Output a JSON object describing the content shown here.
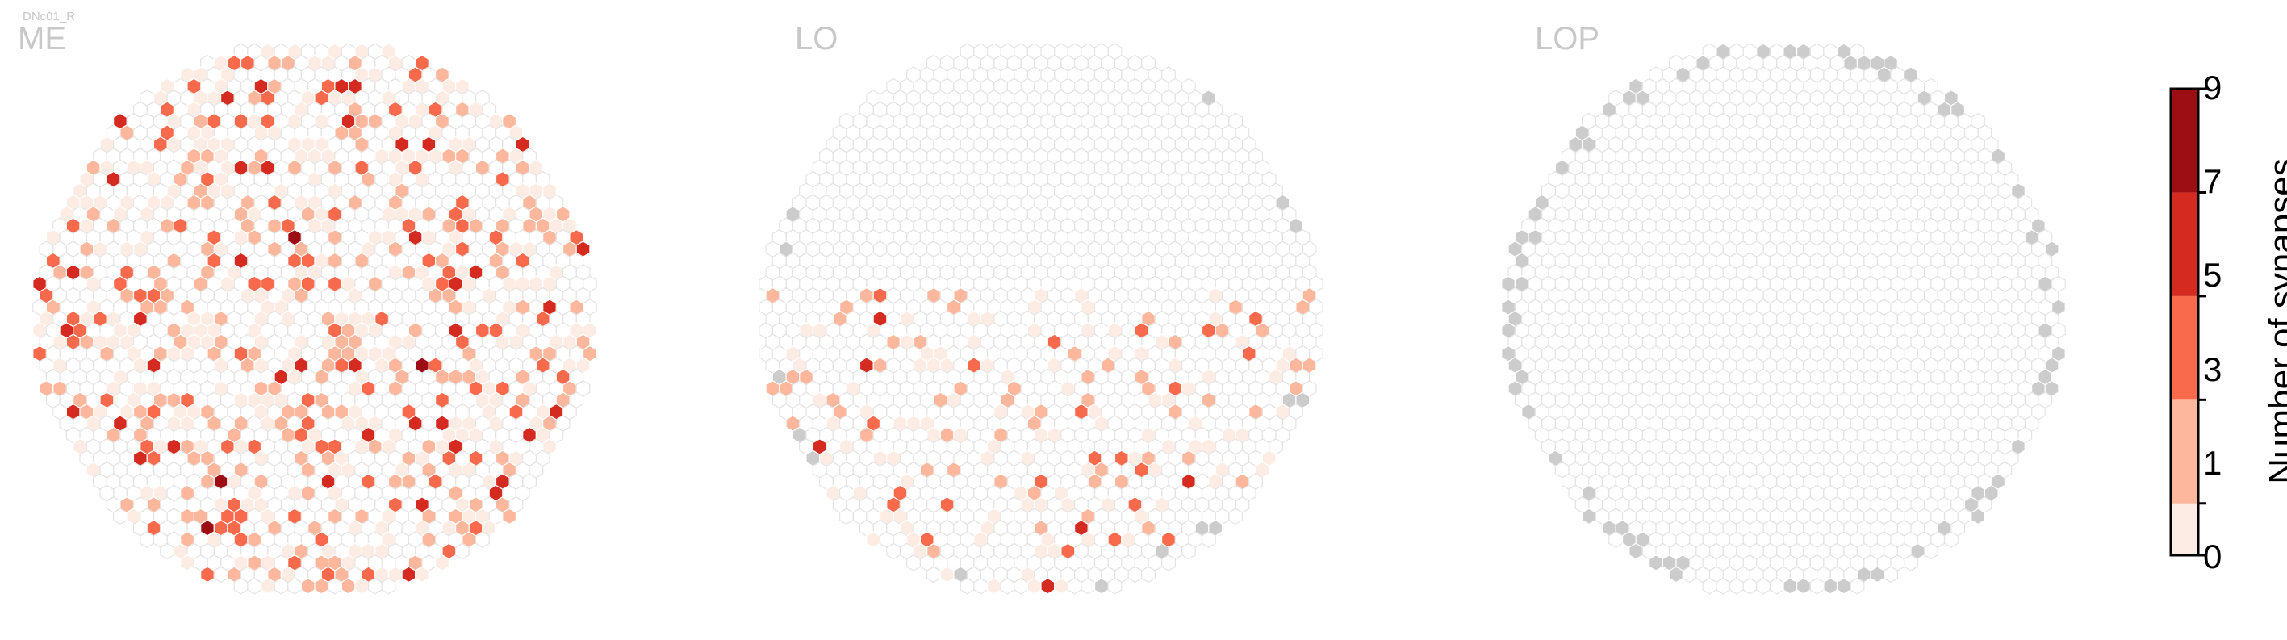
{
  "figure": {
    "cell_label": "DNc01_R"
  },
  "chart_data": [
    {
      "type": "heatmap",
      "title": "ME",
      "description": "hexagonal column map of medulla; cells colored by synapse count",
      "value_scale": "Number of synapses",
      "stray_hex_count_estimate": 0,
      "grid": "hexagonal"
    },
    {
      "type": "heatmap",
      "title": "LO",
      "grid": "hexagonal"
    },
    {
      "type": "heatmap",
      "title": "LOP",
      "grid": "hexagonal"
    }
  ],
  "colorbar": {
    "label": "Number of synapses",
    "ticks": [
      "0",
      "1",
      "3",
      "5",
      "7",
      "9"
    ],
    "bins": [
      {
        "from": 0,
        "to": 1,
        "color": "#fdece3"
      },
      {
        "from": 1,
        "to": 3,
        "color": "#fcb79c"
      },
      {
        "from": 3,
        "to": 5,
        "color": "#f9694c"
      },
      {
        "from": 5,
        "to": 7,
        "color": "#d42a20"
      },
      {
        "from": 7,
        "to": 9,
        "color": "#9c0d14"
      }
    ]
  },
  "colors": {
    "empty_hex_stroke": "#e4e4e4",
    "outside_hex_fill": "#cccccc",
    "title_color": "#c8c8c8"
  }
}
